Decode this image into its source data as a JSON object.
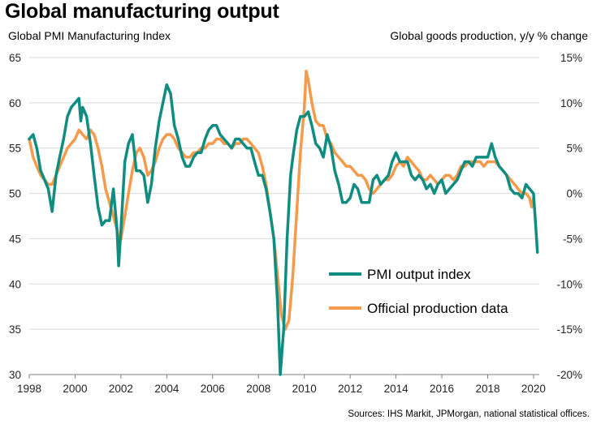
{
  "title": "Global manufacturing output",
  "source": "Sources: IHS Markit, JPMorgan, national statistical offices.",
  "colors": {
    "pmi": "#118c80",
    "official": "#f59a4a",
    "grid": "#d9d9d9"
  },
  "chart_data": {
    "type": "line",
    "left_axis": {
      "label": "Global  PMI Manufacturing Index",
      "ylim": [
        30,
        65
      ],
      "ticks": [
        "30",
        "35",
        "40",
        "45",
        "50",
        "55",
        "60",
        "65"
      ]
    },
    "right_axis": {
      "label": "Global  goods production, y/y % change",
      "ylim": [
        -20,
        15
      ],
      "ticks": [
        "-20%",
        "-15%",
        "-10%",
        "-5%",
        "0%",
        "5%",
        "10%",
        "15%"
      ]
    },
    "x_axis": {
      "xlim": [
        1998,
        2020.25
      ],
      "ticks": [
        "1998",
        "2000",
        "2002",
        "2004",
        "2006",
        "2008",
        "2010",
        "2012",
        "2014",
        "2016",
        "2018",
        "2020"
      ]
    },
    "grid": "horizontal",
    "legend_position": "lower-right",
    "series": [
      {
        "name": "PMI output index",
        "axis": "left",
        "x": [
          1998.0,
          1998.17,
          1998.33,
          1998.5,
          1998.67,
          1998.83,
          1999.0,
          1999.17,
          1999.33,
          1999.5,
          1999.67,
          1999.83,
          2000.0,
          2000.17,
          2000.25,
          2000.33,
          2000.5,
          2000.67,
          2000.83,
          2001.0,
          2001.17,
          2001.33,
          2001.5,
          2001.67,
          2001.83,
          2001.9,
          2002.0,
          2002.17,
          2002.33,
          2002.5,
          2002.67,
          2002.83,
          2003.0,
          2003.17,
          2003.33,
          2003.5,
          2003.67,
          2003.83,
          2004.0,
          2004.17,
          2004.33,
          2004.5,
          2004.67,
          2004.83,
          2005.0,
          2005.17,
          2005.33,
          2005.5,
          2005.67,
          2005.83,
          2006.0,
          2006.17,
          2006.33,
          2006.5,
          2006.67,
          2006.83,
          2007.0,
          2007.17,
          2007.33,
          2007.5,
          2007.67,
          2007.83,
          2008.0,
          2008.17,
          2008.33,
          2008.5,
          2008.67,
          2008.83,
          2008.95,
          2009.1,
          2009.25,
          2009.4,
          2009.5,
          2009.67,
          2009.83,
          2010.0,
          2010.17,
          2010.33,
          2010.5,
          2010.67,
          2010.83,
          2011.0,
          2011.17,
          2011.33,
          2011.5,
          2011.67,
          2011.83,
          2012.0,
          2012.17,
          2012.33,
          2012.5,
          2012.67,
          2012.83,
          2013.0,
          2013.17,
          2013.33,
          2013.5,
          2013.67,
          2013.83,
          2014.0,
          2014.17,
          2014.33,
          2014.5,
          2014.67,
          2014.83,
          2015.0,
          2015.17,
          2015.33,
          2015.5,
          2015.67,
          2015.83,
          2016.0,
          2016.17,
          2016.33,
          2016.5,
          2016.67,
          2016.83,
          2017.0,
          2017.17,
          2017.33,
          2017.5,
          2017.67,
          2017.83,
          2018.0,
          2018.17,
          2018.33,
          2018.5,
          2018.67,
          2018.83,
          2019.0,
          2019.17,
          2019.33,
          2019.5,
          2019.67,
          2019.83,
          2020.0,
          2020.08,
          2020.17
        ],
        "y": [
          56.0,
          56.5,
          55.0,
          52.5,
          51.5,
          50.5,
          48.0,
          52.0,
          54.0,
          56.0,
          58.5,
          59.5,
          60.0,
          60.5,
          58.0,
          59.5,
          58.5,
          55.5,
          52.0,
          48.5,
          46.5,
          47.0,
          47.0,
          50.5,
          46.0,
          42.0,
          46.0,
          53.5,
          55.5,
          56.5,
          52.5,
          52.5,
          52.0,
          49.0,
          51.0,
          55.0,
          58.0,
          60.0,
          62.0,
          61.0,
          57.5,
          56.0,
          54.0,
          53.0,
          53.0,
          54.0,
          54.5,
          54.5,
          56.0,
          57.0,
          57.5,
          57.5,
          56.5,
          56.0,
          55.5,
          55.0,
          56.0,
          56.0,
          55.5,
          55.0,
          55.0,
          53.5,
          52.0,
          52.0,
          50.5,
          48.0,
          45.0,
          38.0,
          30.0,
          35.0,
          45.0,
          52.0,
          54.0,
          57.0,
          58.5,
          58.5,
          59.0,
          57.5,
          55.5,
          55.0,
          54.0,
          56.5,
          55.0,
          52.5,
          51.0,
          49.0,
          49.0,
          49.5,
          51.0,
          50.5,
          49.0,
          49.0,
          49.0,
          51.5,
          52.0,
          51.0,
          51.5,
          52.0,
          53.5,
          54.5,
          53.5,
          53.5,
          53.5,
          52.0,
          51.5,
          52.0,
          51.5,
          50.5,
          51.0,
          50.0,
          51.0,
          51.5,
          50.0,
          50.5,
          51.0,
          51.5,
          52.5,
          53.5,
          53.5,
          53.0,
          54.0,
          54.0,
          54.0,
          54.0,
          55.5,
          54.0,
          53.0,
          52.5,
          52.0,
          50.5,
          50.0,
          50.0,
          49.5,
          51.0,
          50.5,
          50.0,
          47.0,
          43.5
        ]
      },
      {
        "name": "Official production data",
        "axis": "right",
        "x": [
          1998.0,
          1998.17,
          1998.33,
          1998.5,
          1998.67,
          1998.83,
          1999.0,
          1999.17,
          1999.33,
          1999.5,
          1999.67,
          1999.83,
          2000.0,
          2000.17,
          2000.33,
          2000.5,
          2000.67,
          2000.83,
          2001.0,
          2001.17,
          2001.33,
          2001.5,
          2001.67,
          2001.83,
          2001.92,
          2002.0,
          2002.17,
          2002.33,
          2002.5,
          2002.67,
          2002.83,
          2003.0,
          2003.17,
          2003.33,
          2003.5,
          2003.67,
          2003.83,
          2004.0,
          2004.17,
          2004.33,
          2004.5,
          2004.67,
          2004.83,
          2005.0,
          2005.17,
          2005.33,
          2005.5,
          2005.67,
          2005.83,
          2006.0,
          2006.17,
          2006.33,
          2006.5,
          2006.67,
          2006.83,
          2007.0,
          2007.17,
          2007.33,
          2007.5,
          2007.67,
          2007.83,
          2008.0,
          2008.17,
          2008.33,
          2008.5,
          2008.67,
          2008.83,
          2009.0,
          2009.17,
          2009.33,
          2009.5,
          2009.67,
          2009.83,
          2010.0,
          2010.08,
          2010.17,
          2010.33,
          2010.5,
          2010.67,
          2010.83,
          2011.0,
          2011.17,
          2011.33,
          2011.5,
          2011.67,
          2011.83,
          2012.0,
          2012.17,
          2012.33,
          2012.5,
          2012.67,
          2012.83,
          2013.0,
          2013.17,
          2013.33,
          2013.5,
          2013.67,
          2013.83,
          2014.0,
          2014.17,
          2014.33,
          2014.5,
          2014.67,
          2014.83,
          2015.0,
          2015.17,
          2015.33,
          2015.5,
          2015.67,
          2015.83,
          2016.0,
          2016.17,
          2016.33,
          2016.5,
          2016.67,
          2016.83,
          2017.0,
          2017.17,
          2017.33,
          2017.5,
          2017.67,
          2017.83,
          2018.0,
          2018.17,
          2018.33,
          2018.5,
          2018.67,
          2018.83,
          2019.0,
          2019.17,
          2019.33,
          2019.5,
          2019.67,
          2019.83,
          2019.92,
          2020.0
        ],
        "y": [
          6.0,
          4.0,
          3.0,
          2.0,
          1.5,
          1.0,
          1.0,
          2.0,
          3.0,
          4.0,
          5.0,
          5.5,
          6.0,
          7.0,
          6.5,
          6.0,
          7.0,
          6.5,
          5.0,
          3.0,
          0.5,
          -1.0,
          -2.5,
          -4.0,
          -5.5,
          -5.0,
          -2.5,
          0.0,
          2.5,
          4.5,
          5.0,
          4.0,
          2.0,
          2.5,
          3.5,
          5.0,
          6.0,
          6.5,
          6.5,
          6.0,
          5.0,
          4.5,
          4.0,
          4.0,
          4.5,
          4.5,
          5.0,
          5.0,
          5.5,
          5.5,
          6.0,
          6.0,
          5.5,
          5.5,
          5.0,
          5.5,
          5.5,
          6.0,
          6.0,
          5.5,
          5.0,
          4.5,
          3.0,
          1.0,
          -2.0,
          -5.0,
          -9.0,
          -13.5,
          -15.0,
          -14.0,
          -9.0,
          -2.0,
          4.5,
          9.5,
          13.5,
          12.5,
          10.0,
          8.0,
          7.5,
          7.5,
          6.0,
          5.5,
          4.5,
          4.0,
          3.5,
          3.0,
          3.0,
          2.5,
          2.0,
          2.0,
          1.5,
          0.5,
          0.0,
          0.5,
          1.0,
          1.5,
          1.5,
          2.0,
          3.0,
          3.5,
          3.0,
          4.0,
          3.5,
          3.0,
          2.5,
          1.5,
          1.5,
          2.0,
          1.5,
          1.0,
          1.5,
          2.0,
          2.0,
          1.5,
          2.0,
          3.0,
          3.0,
          3.5,
          3.5,
          3.5,
          3.5,
          3.0,
          3.5,
          3.5,
          3.5,
          3.0,
          2.5,
          2.0,
          1.5,
          1.0,
          0.5,
          0.0,
          0.0,
          -0.5,
          -1.5,
          -0.5
        ]
      }
    ]
  }
}
